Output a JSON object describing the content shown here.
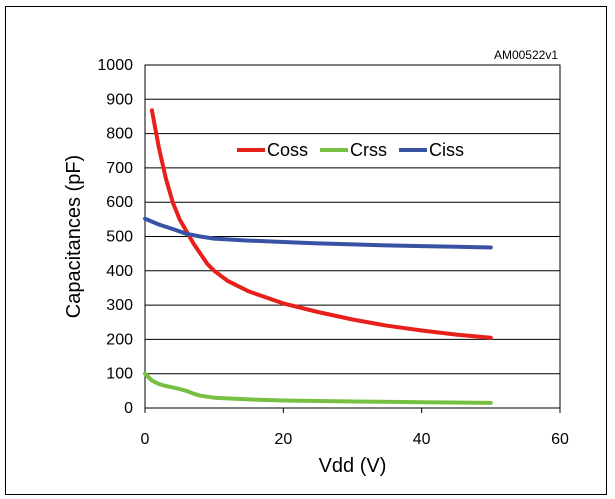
{
  "chart_data": {
    "type": "line",
    "title": "",
    "figure_code": "AM00522v1",
    "xlabel": "Vdd (V)",
    "ylabel": "Capacitances (pF)",
    "xlim": [
      0,
      60
    ],
    "ylim": [
      0,
      1000
    ],
    "xticks": [
      0,
      20,
      40,
      60
    ],
    "yticks": [
      0,
      100,
      200,
      300,
      400,
      500,
      600,
      700,
      800,
      900,
      1000
    ],
    "grid": "horizontal",
    "legend_position": "top-right",
    "series": [
      {
        "name": "Coss",
        "color": "#e8201c",
        "points": [
          [
            1,
            868
          ],
          [
            2,
            760
          ],
          [
            3,
            670
          ],
          [
            4,
            600
          ],
          [
            5,
            550
          ],
          [
            7,
            480
          ],
          [
            9,
            420
          ],
          [
            10,
            400
          ],
          [
            12,
            370
          ],
          [
            15,
            340
          ],
          [
            20,
            305
          ],
          [
            25,
            280
          ],
          [
            30,
            258
          ],
          [
            35,
            240
          ],
          [
            40,
            226
          ],
          [
            45,
            214
          ],
          [
            50,
            205
          ]
        ]
      },
      {
        "name": "Crss",
        "color": "#77c043",
        "points": [
          [
            0,
            100
          ],
          [
            1,
            80
          ],
          [
            2,
            70
          ],
          [
            3,
            64
          ],
          [
            4,
            60
          ],
          [
            5,
            55
          ],
          [
            6,
            50
          ],
          [
            7,
            42
          ],
          [
            8,
            36
          ],
          [
            10,
            30
          ],
          [
            15,
            25
          ],
          [
            20,
            22
          ],
          [
            30,
            19
          ],
          [
            40,
            17
          ],
          [
            50,
            15
          ]
        ]
      },
      {
        "name": "Ciss",
        "color": "#3953a4",
        "points": [
          [
            0,
            552
          ],
          [
            2,
            535
          ],
          [
            4,
            522
          ],
          [
            6,
            508
          ],
          [
            8,
            500
          ],
          [
            10,
            494
          ],
          [
            15,
            488
          ],
          [
            20,
            484
          ],
          [
            25,
            480
          ],
          [
            30,
            477
          ],
          [
            35,
            474
          ],
          [
            40,
            472
          ],
          [
            45,
            470
          ],
          [
            50,
            468
          ]
        ]
      }
    ]
  }
}
